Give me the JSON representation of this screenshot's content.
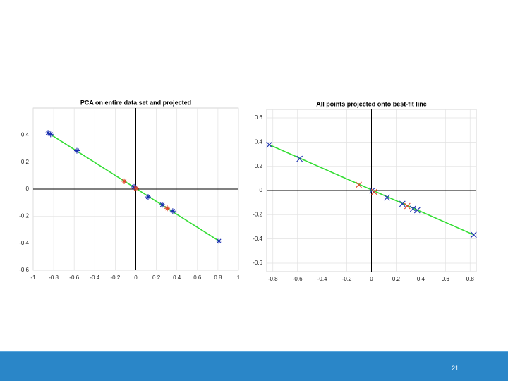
{
  "chart_data": [
    {
      "type": "scatter",
      "title": "PCA on entire data set and projected",
      "marker": "asterisk",
      "grid": true,
      "zero_lines": true,
      "xlim": [
        -1,
        1
      ],
      "xticks": [
        -1,
        -0.8,
        -0.6,
        -0.4,
        -0.2,
        0,
        0.2,
        0.4,
        0.6,
        0.8,
        1
      ],
      "ylim": [
        -0.6,
        0.6
      ],
      "yticks": [
        -0.6,
        -0.4,
        -0.2,
        0,
        0.2,
        0.4
      ],
      "series": [
        {
          "mode": "line",
          "color": "#33dd33",
          "x": [
            -0.855,
            0.81
          ],
          "values": [
            0.416,
            -0.384
          ]
        },
        {
          "mode": "markers",
          "color": "#1a2fb0",
          "x": [
            -0.855,
            -0.83,
            -0.574,
            -0.017,
            0.12,
            0.258,
            0.36,
            0.81
          ],
          "values": [
            0.416,
            0.405,
            0.284,
            0.016,
            -0.058,
            -0.116,
            -0.163,
            -0.384
          ]
        },
        {
          "mode": "markers",
          "color": "#e0452a",
          "x": [
            -0.113,
            0.003,
            0.306
          ],
          "values": [
            0.058,
            0.005,
            -0.142
          ]
        }
      ]
    },
    {
      "type": "scatter",
      "title": "All points projected onto best-fit line",
      "marker": "cross",
      "grid": true,
      "zero_lines": true,
      "xlim": [
        -0.85,
        0.85
      ],
      "xticks": [
        -0.8,
        -0.6,
        -0.4,
        -0.2,
        0,
        0.2,
        0.4,
        0.6,
        0.8
      ],
      "ylim": [
        -0.67,
        0.67
      ],
      "yticks": [
        -0.6,
        -0.4,
        -0.2,
        0,
        0.2,
        0.4,
        0.6
      ],
      "series": [
        {
          "mode": "line",
          "color": "#33dd33",
          "x": [
            -0.829,
            0.829
          ],
          "values": [
            0.378,
            -0.366
          ]
        },
        {
          "mode": "markers",
          "color": "#1a2fb0",
          "x": [
            -0.829,
            -0.583,
            0.006,
            0.126,
            0.251,
            0.337,
            0.371,
            0.829
          ],
          "values": [
            0.378,
            0.262,
            0,
            -0.058,
            -0.11,
            -0.151,
            -0.163,
            -0.366
          ]
        },
        {
          "mode": "markers",
          "color": "#e0452a",
          "x": [
            -0.103,
            0.023,
            0.291
          ],
          "values": [
            0.047,
            -0.012,
            -0.128
          ]
        }
      ]
    }
  ],
  "footer": {
    "page_number": "21"
  }
}
